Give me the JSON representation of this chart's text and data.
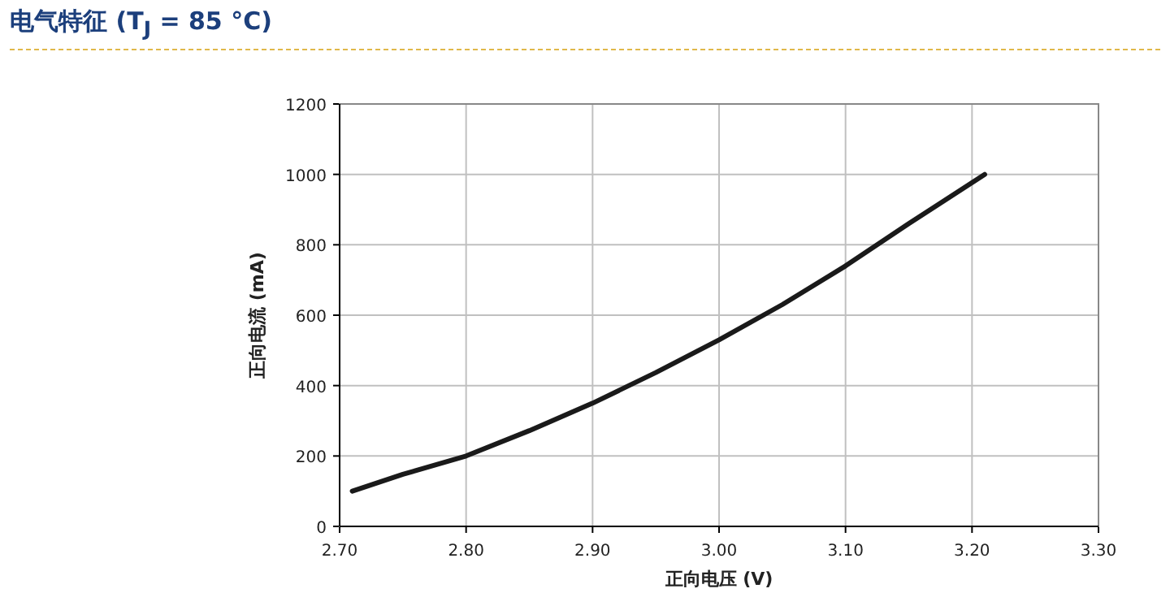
{
  "chart_data": {
    "type": "line",
    "title": "电气特征 (T$_{J}$ = 85 °C)",
    "xlabel": "正向电压 (V)",
    "ylabel": "正向电流 (mA)",
    "x": [
      2.71,
      2.75,
      2.8,
      2.85,
      2.9,
      2.95,
      3.0,
      3.05,
      3.1,
      3.15,
      3.21
    ],
    "series": [
      {
        "color": "#1a1a1a",
        "values": [
          100,
          148,
          200,
          272,
          350,
          437,
          530,
          630,
          740,
          860,
          1000
        ]
      }
    ],
    "xlim": [
      2.7,
      3.3
    ],
    "xticks": [
      {
        "value": 2.7,
        "label": "2.70"
      },
      {
        "value": 2.8,
        "label": "2.80"
      },
      {
        "value": 2.9,
        "label": "2.90"
      },
      {
        "value": 3.0,
        "label": "3.00"
      },
      {
        "value": 3.1,
        "label": "3.10"
      },
      {
        "value": 3.2,
        "label": "3.20"
      },
      {
        "value": 3.3,
        "label": "3.30"
      }
    ],
    "ylim": [
      0,
      1200
    ],
    "yticks": [
      0,
      200,
      400,
      600,
      800,
      1000,
      1200
    ],
    "grid": true,
    "marker": "none",
    "line_style": "solid"
  }
}
